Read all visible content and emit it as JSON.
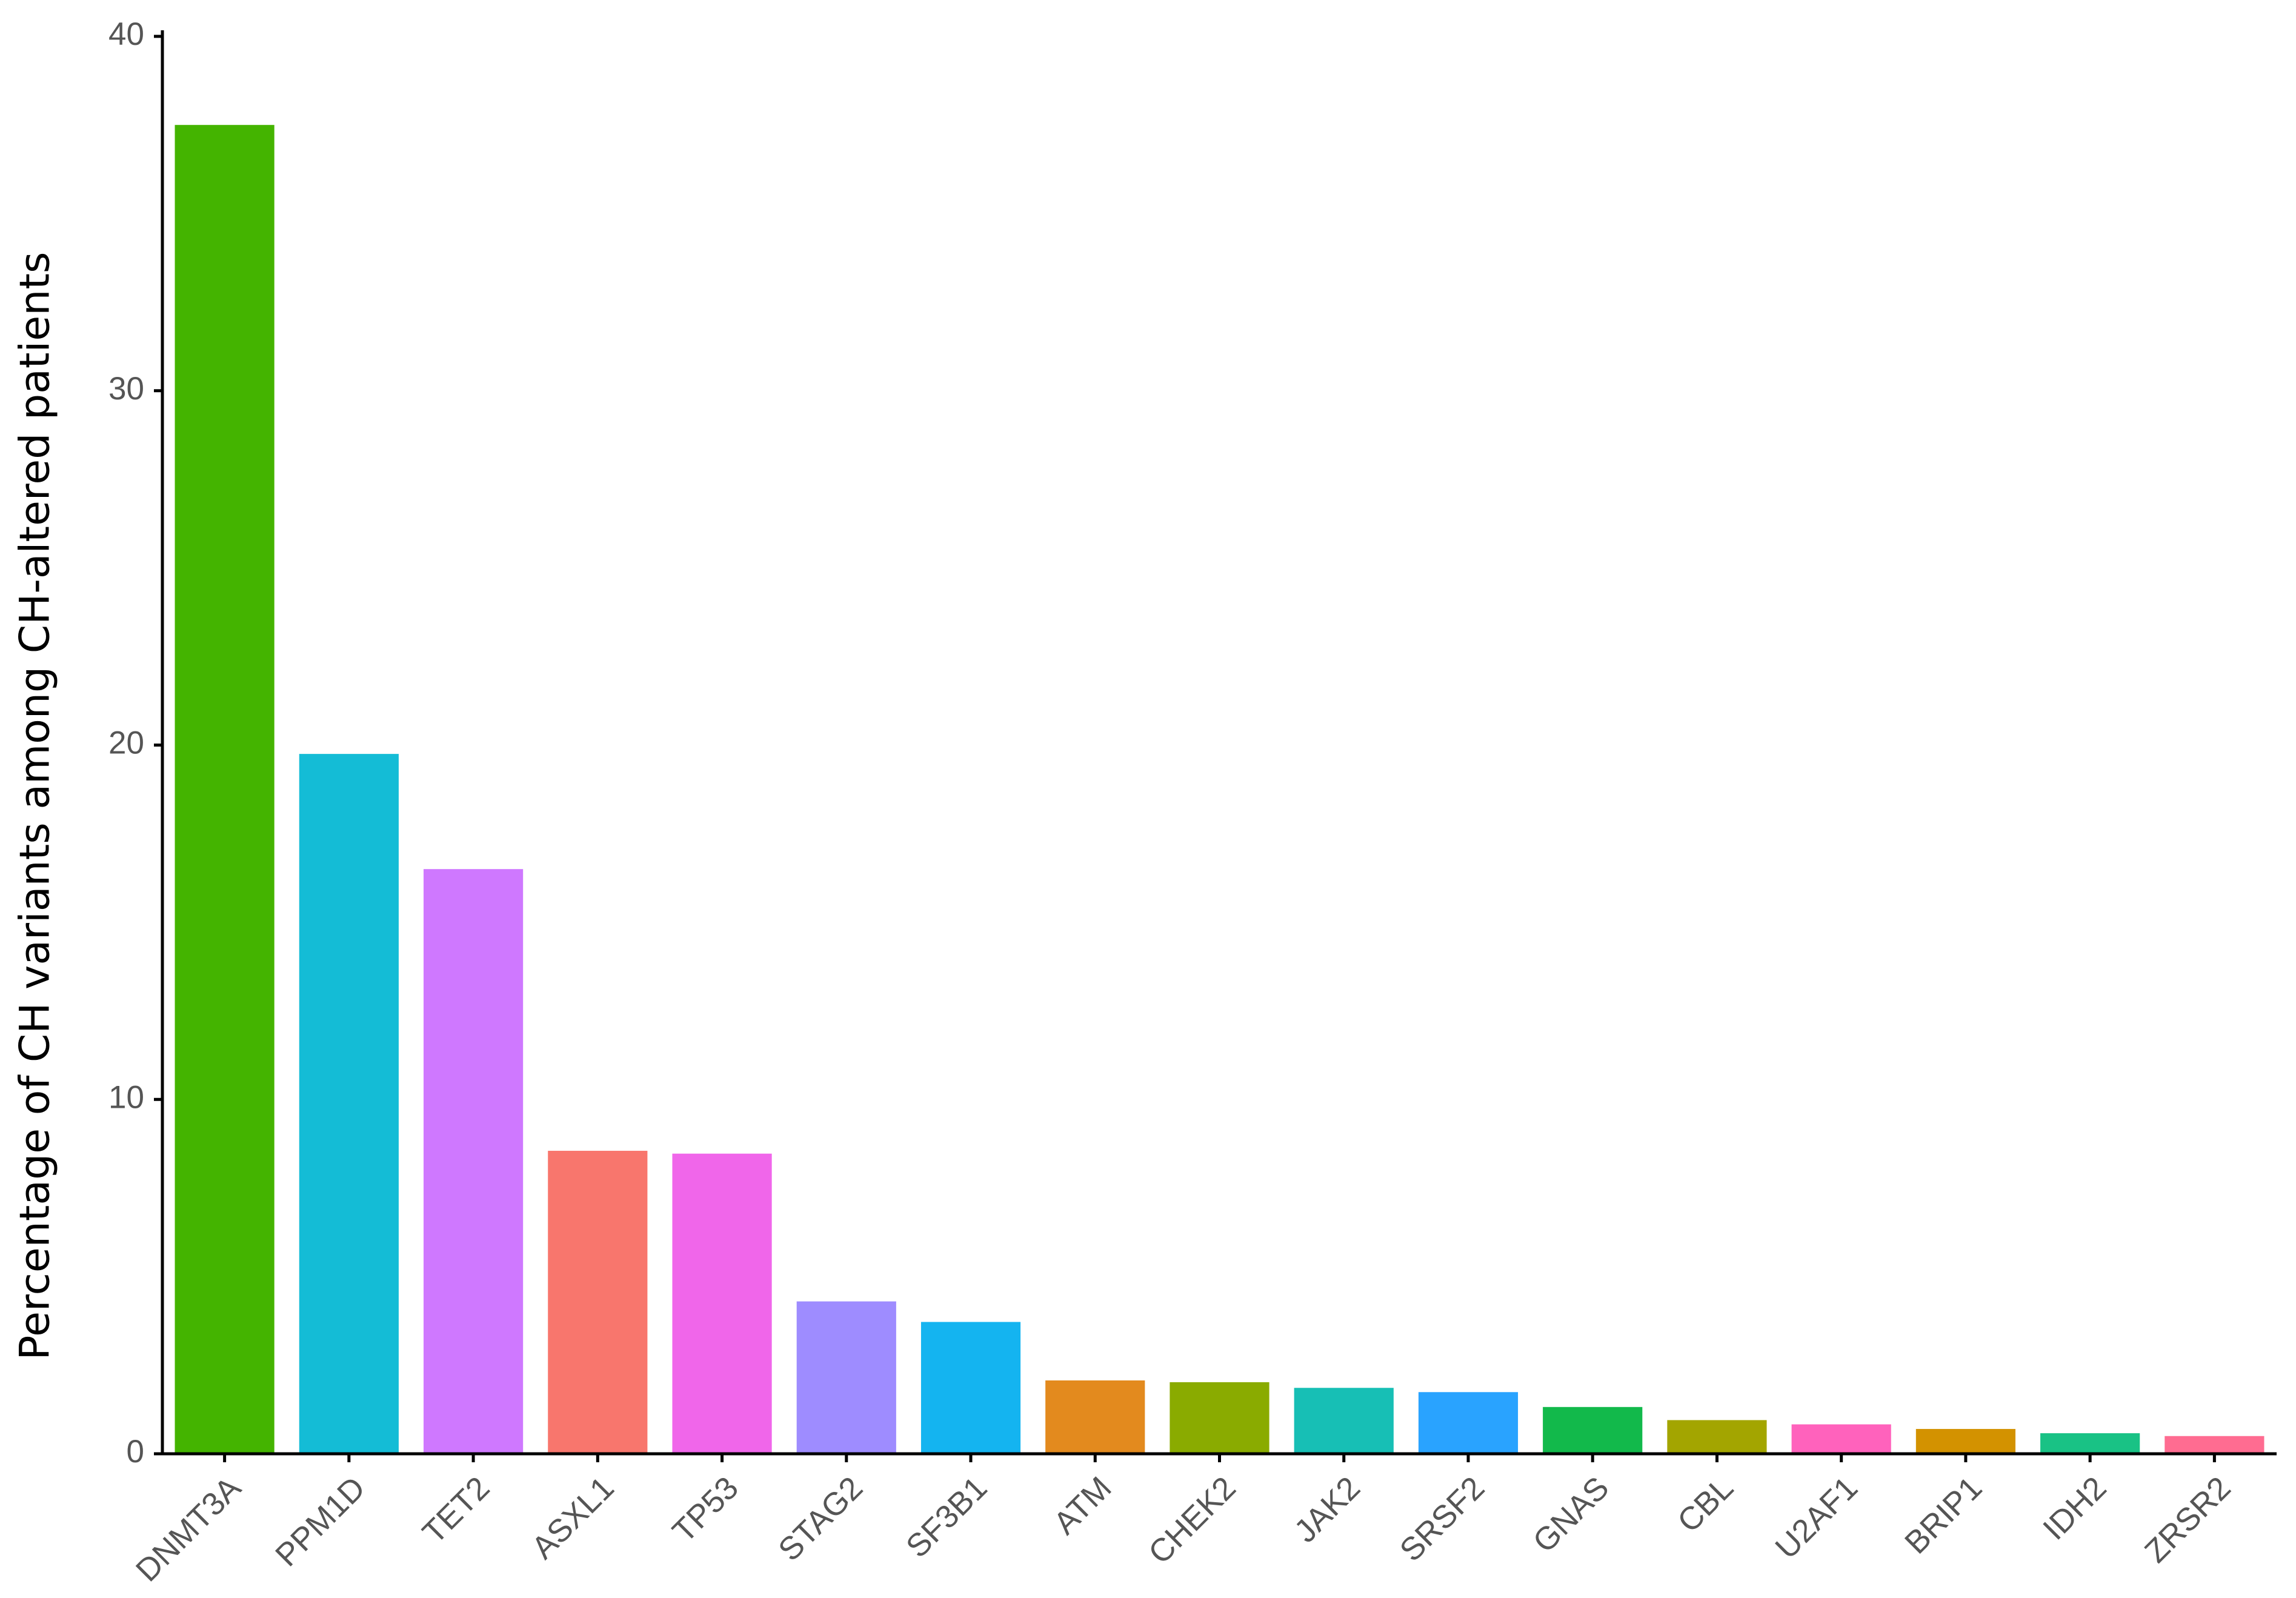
{
  "chart_data": {
    "type": "bar",
    "y_label": "Percentage of CH variants among CH-altered patients",
    "categories": [
      "DNMT3A",
      "PPM1D",
      "TET2",
      "ASXL1",
      "TP53",
      "STAG2",
      "SF3B1",
      "ATM",
      "CHEK2",
      "JAK2",
      "SRSF2",
      "GNAS",
      "CBL",
      "U2AF1",
      "BRIP1",
      "IDH2",
      "ZRSR2"
    ],
    "values": [
      37.5,
      19.75,
      16.5,
      8.55,
      8.47,
      4.3,
      3.72,
      2.07,
      2.02,
      1.86,
      1.74,
      1.32,
      0.95,
      0.83,
      0.7,
      0.58,
      0.5
    ],
    "colors": [
      "#44b400",
      "#14bcd6",
      "#cf78ff",
      "#f8766d",
      "#f066ea",
      "#9e8cff",
      "#14b4f0",
      "#e38a1e",
      "#8aab00",
      "#17bfb5",
      "#29a3ff",
      "#12b94b",
      "#a3a500",
      "#ff62bc",
      "#d39200",
      "#19c285",
      "#ff6c91"
    ],
    "ylim": [
      0,
      40
    ],
    "yticks": [
      0,
      10,
      20,
      30,
      40
    ],
    "grid": false
  }
}
